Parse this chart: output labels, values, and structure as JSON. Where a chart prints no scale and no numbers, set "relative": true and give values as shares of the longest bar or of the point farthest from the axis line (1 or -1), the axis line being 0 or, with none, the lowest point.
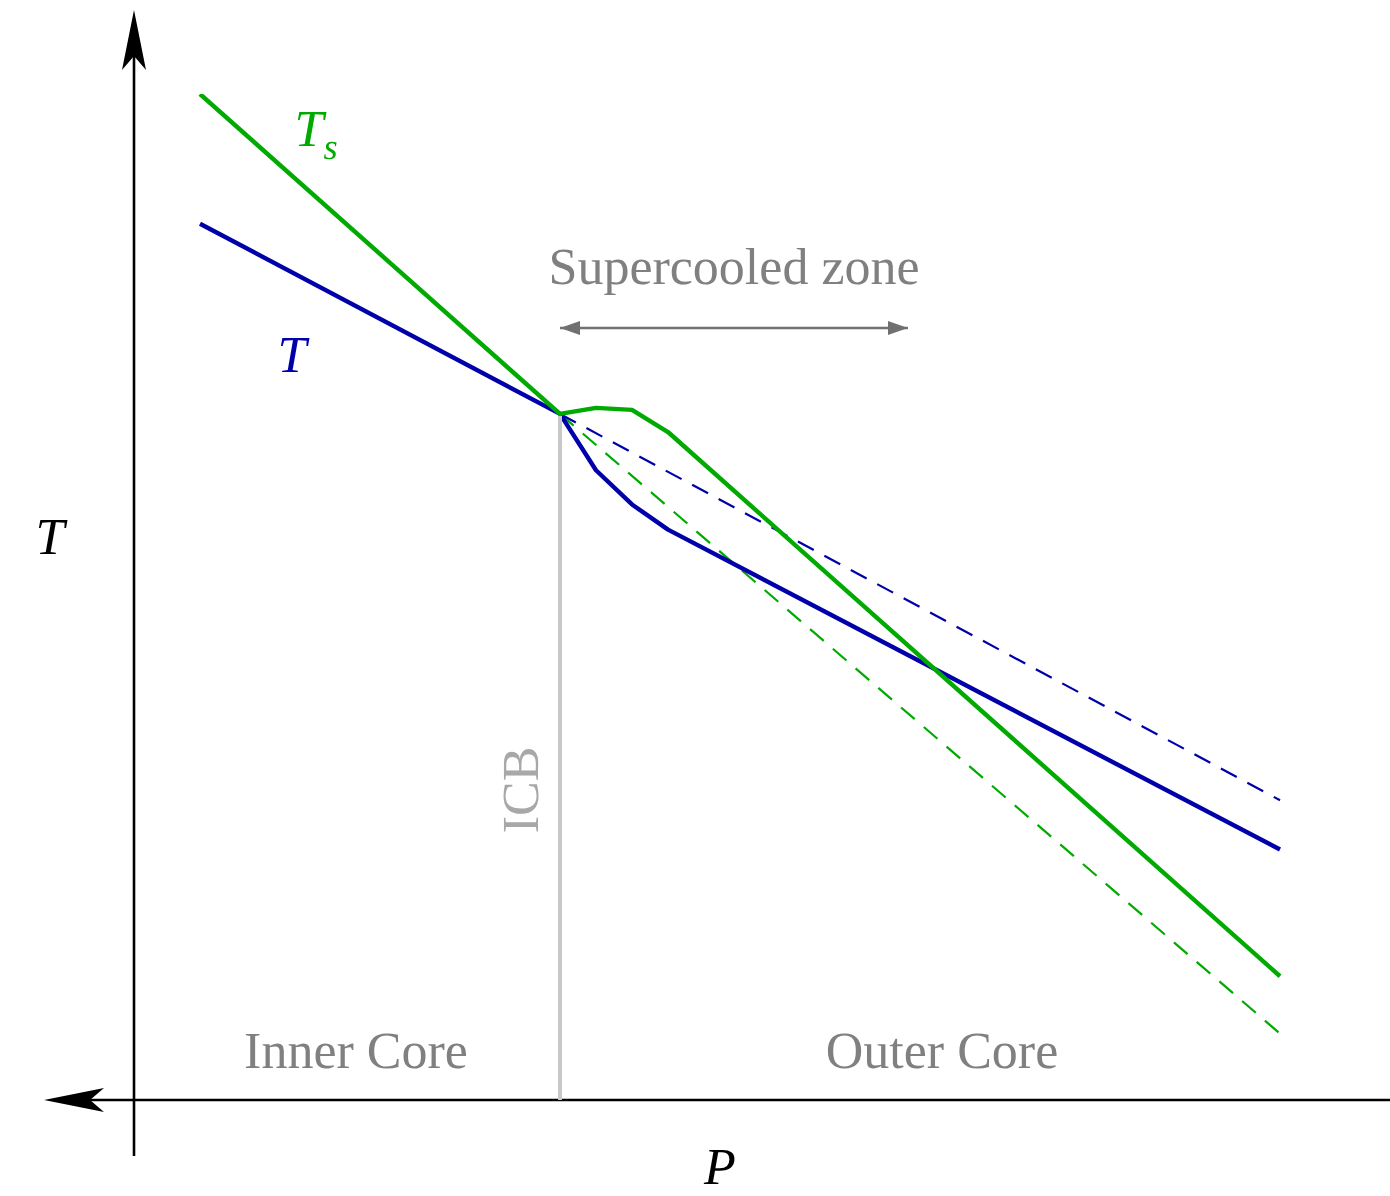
{
  "chart_data": {
    "type": "line",
    "relative": true,
    "xlabel": "P",
    "ylabel": "T",
    "marker": "none",
    "legend": false,
    "tick_labels": false,
    "categories": [
      null,
      null,
      null,
      null,
      null,
      null,
      null,
      null,
      null,
      null,
      null,
      null,
      null,
      null,
      null,
      null,
      null,
      null,
      null,
      null,
      null,
      null,
      null,
      null,
      null,
      null,
      null,
      null,
      null,
      null,
      null
    ],
    "series": [
      {
        "name": "T$_{s}$",
        "color": "#00aa00",
        "line_style": "solid",
        "values": [
          1.0,
          null,
          null,
          null,
          null,
          null,
          null,
          null,
          null,
          null,
          0.682,
          0.688,
          0.686,
          0.664,
          null,
          null,
          null,
          null,
          null,
          null,
          null,
          null,
          null,
          null,
          null,
          null,
          null,
          null,
          null,
          null,
          0.123
        ]
      },
      {
        "name": "T",
        "color": "#0000aa",
        "line_style": "solid",
        "values": [
          0.871,
          null,
          null,
          null,
          null,
          null,
          null,
          null,
          null,
          null,
          0.682,
          0.626,
          0.592,
          0.567,
          null,
          null,
          null,
          null,
          null,
          null,
          null,
          null,
          null,
          null,
          null,
          null,
          null,
          null,
          null,
          null,
          0.249
        ]
      },
      {
        "color": "#0000aa",
        "line_style": "dashed",
        "values": [
          null,
          null,
          null,
          null,
          null,
          null,
          null,
          null,
          null,
          null,
          0.682,
          null,
          null,
          null,
          null,
          null,
          null,
          null,
          null,
          null,
          null,
          null,
          null,
          null,
          null,
          null,
          null,
          null,
          null,
          null,
          0.298
        ]
      },
      {
        "color": "#00aa00",
        "line_style": "dashed",
        "values": [
          null,
          null,
          null,
          null,
          null,
          null,
          null,
          null,
          null,
          null,
          0.682,
          null,
          null,
          null,
          null,
          null,
          null,
          null,
          null,
          null,
          null,
          null,
          null,
          null,
          null,
          null,
          null,
          null,
          null,
          null,
          0.066
        ]
      }
    ],
    "annotations": [
      "Supercooled zone",
      "Inner Core",
      "Outer Core",
      "ICB"
    ]
  }
}
